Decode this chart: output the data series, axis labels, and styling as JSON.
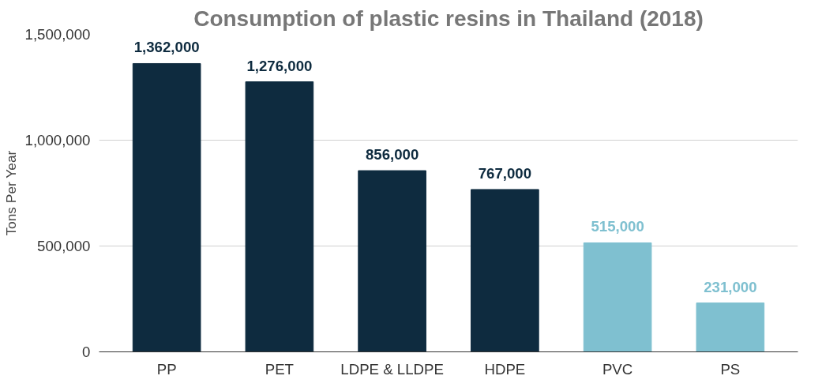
{
  "chart_data": {
    "type": "bar",
    "title": "Consumption of plastic resins in Thailand (2018)",
    "ylabel": "Tons Per Year",
    "categories": [
      "PP",
      "PET",
      "LDPE & LLDPE",
      "HDPE",
      "PVC",
      "PS"
    ],
    "values": [
      1362000,
      1276000,
      856000,
      767000,
      515000,
      231000
    ],
    "colors": [
      "#0e2b3f",
      "#0e2b3f",
      "#0e2b3f",
      "#0e2b3f",
      "#7fc0d0",
      "#7fc0d0"
    ],
    "value_labels": [
      "1,362,000",
      "1,276,000",
      "856,000",
      "767,000",
      "515,000",
      "231,000"
    ],
    "ylim": [
      0,
      1500000
    ],
    "yticks": [
      {
        "value": 0,
        "label": "0"
      },
      {
        "value": 500000,
        "label": "500,000"
      },
      {
        "value": 1000000,
        "label": "1,000,000"
      },
      {
        "value": 1500000,
        "label": "1,500,000"
      }
    ],
    "grid": "y"
  }
}
